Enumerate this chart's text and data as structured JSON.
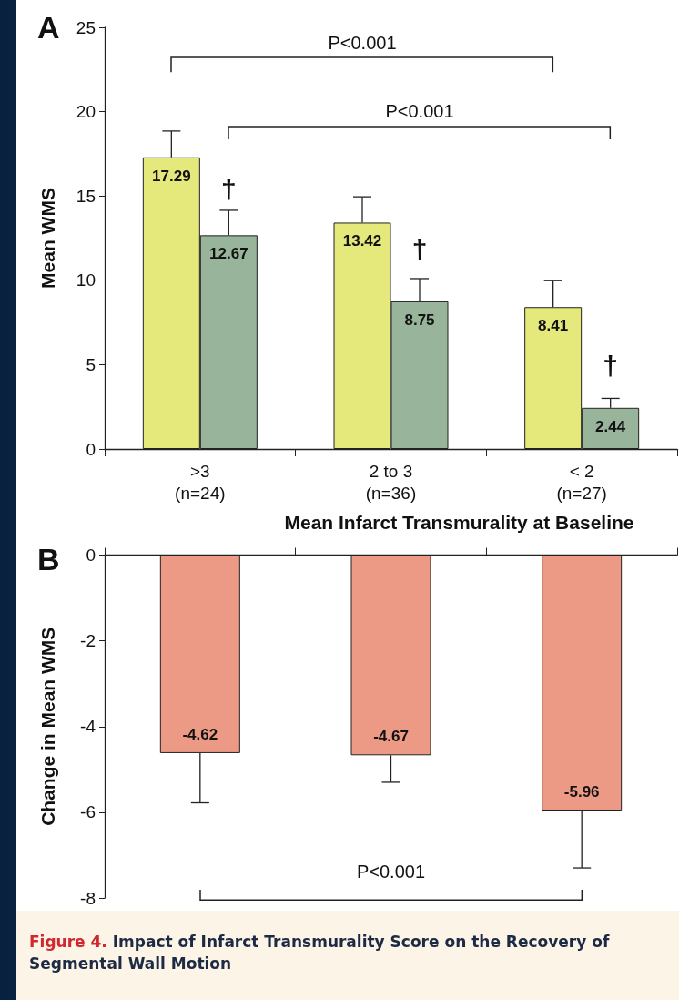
{
  "chart_data": [
    {
      "type": "bar",
      "title": "A",
      "xlabel": "Mean Infarct Transmurality at Baseline",
      "ylabel": "Mean WMS",
      "categories": [
        ">3\n(n=24)",
        "2 to 3\n(n=36)",
        "< 2\n(n=27)"
      ],
      "series": [
        {
          "color": "#e5e87a",
          "values": [
            17.29,
            13.42,
            8.41
          ],
          "errors": [
            [
              17.29,
              18.85
            ],
            [
              13.42,
              14.95
            ],
            [
              8.41,
              10.0
            ]
          ]
        },
        {
          "color": "#98b59c",
          "values": [
            12.67,
            8.75,
            2.44
          ],
          "errors": [
            [
              12.67,
              14.15
            ],
            [
              8.75,
              10.1
            ],
            [
              2.44,
              3.0
            ]
          ]
        }
      ],
      "ylim": [
        0,
        25
      ],
      "yticks": [
        0,
        5,
        10,
        15,
        20,
        25
      ],
      "data_labels": true,
      "annotations": [
        {
          "text": "†",
          "x": ">3\n(n=24)",
          "y": 15.4
        },
        {
          "text": "†",
          "x": "2 to 3\n(n=36)",
          "y": 11.8
        },
        {
          "text": "†",
          "x": "< 2\n(n=27)",
          "y": 4.9
        },
        "P<0.001",
        "P<0.001"
      ]
    },
    {
      "type": "bar",
      "title": "B",
      "ylabel": "Change in Mean WMS",
      "categories": [
        null,
        null,
        null
      ],
      "series": [
        {
          "color": "#ec9a86",
          "values": [
            -4.62,
            -4.67,
            -5.96
          ],
          "errors": [
            [
              -5.78,
              -4.62
            ],
            [
              -5.3,
              -4.67
            ],
            [
              -7.3,
              -5.96
            ]
          ]
        }
      ],
      "ylim": [
        -8,
        0
      ],
      "yticks": [
        -8,
        -6,
        -4,
        -2,
        0
      ],
      "tick_labels": "y",
      "data_labels": true,
      "annotations": [
        "P<0.001",
        "Figure 4. Impact of Infarct Transmurality Score on the Recovery of Segmental Wall Motion"
      ]
    }
  ]
}
